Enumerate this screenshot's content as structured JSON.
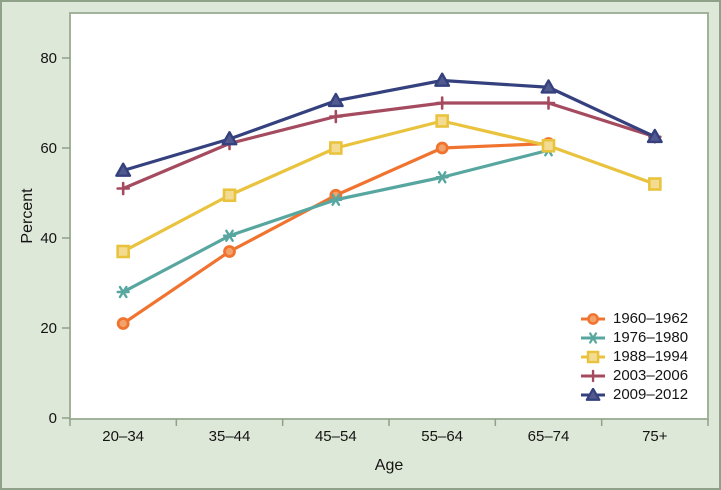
{
  "figure": {
    "background": "#dee8d8",
    "outer_border_color": "#8fa189",
    "plot_background": "#ffffff",
    "plot_frame_color": "#a2b29a",
    "tick_color": "#8fa189",
    "text_color": "#141414"
  },
  "chart_data": {
    "type": "line",
    "title": "",
    "xlabel": "Age",
    "ylabel": "Percent",
    "categories": [
      "20–34",
      "35–44",
      "45–54",
      "55–64",
      "65–74",
      "75+"
    ],
    "yticks": [
      0,
      20,
      40,
      60,
      80
    ],
    "ylim": [
      0,
      90
    ],
    "grid": false,
    "legend_position": "inside-bottom-right",
    "series": [
      {
        "name": "1960–1962",
        "color": "#f0742f",
        "fill": "#f2a36c",
        "marker": "circle",
        "values": [
          21,
          37,
          49.5,
          60,
          61,
          null
        ]
      },
      {
        "name": "1976–1980",
        "color": "#57a7a0",
        "fill": "#57a7a0",
        "marker": "star",
        "values": [
          28,
          40.5,
          48.5,
          53.5,
          59.5,
          null
        ]
      },
      {
        "name": "1988–1994",
        "color": "#e9c33e",
        "fill": "#f3dc92",
        "marker": "square",
        "values": [
          37,
          49.5,
          60,
          66,
          60.5,
          52
        ]
      },
      {
        "name": "2003–2006",
        "color": "#a54b60",
        "fill": "#a54b60",
        "marker": "plus",
        "values": [
          51,
          61,
          67,
          70,
          70,
          62.5
        ]
      },
      {
        "name": "2009–2012",
        "color": "#35417e",
        "fill": "#51598e",
        "marker": "triangle",
        "values": [
          55,
          62,
          70.5,
          75,
          73.5,
          62.5
        ]
      }
    ]
  }
}
